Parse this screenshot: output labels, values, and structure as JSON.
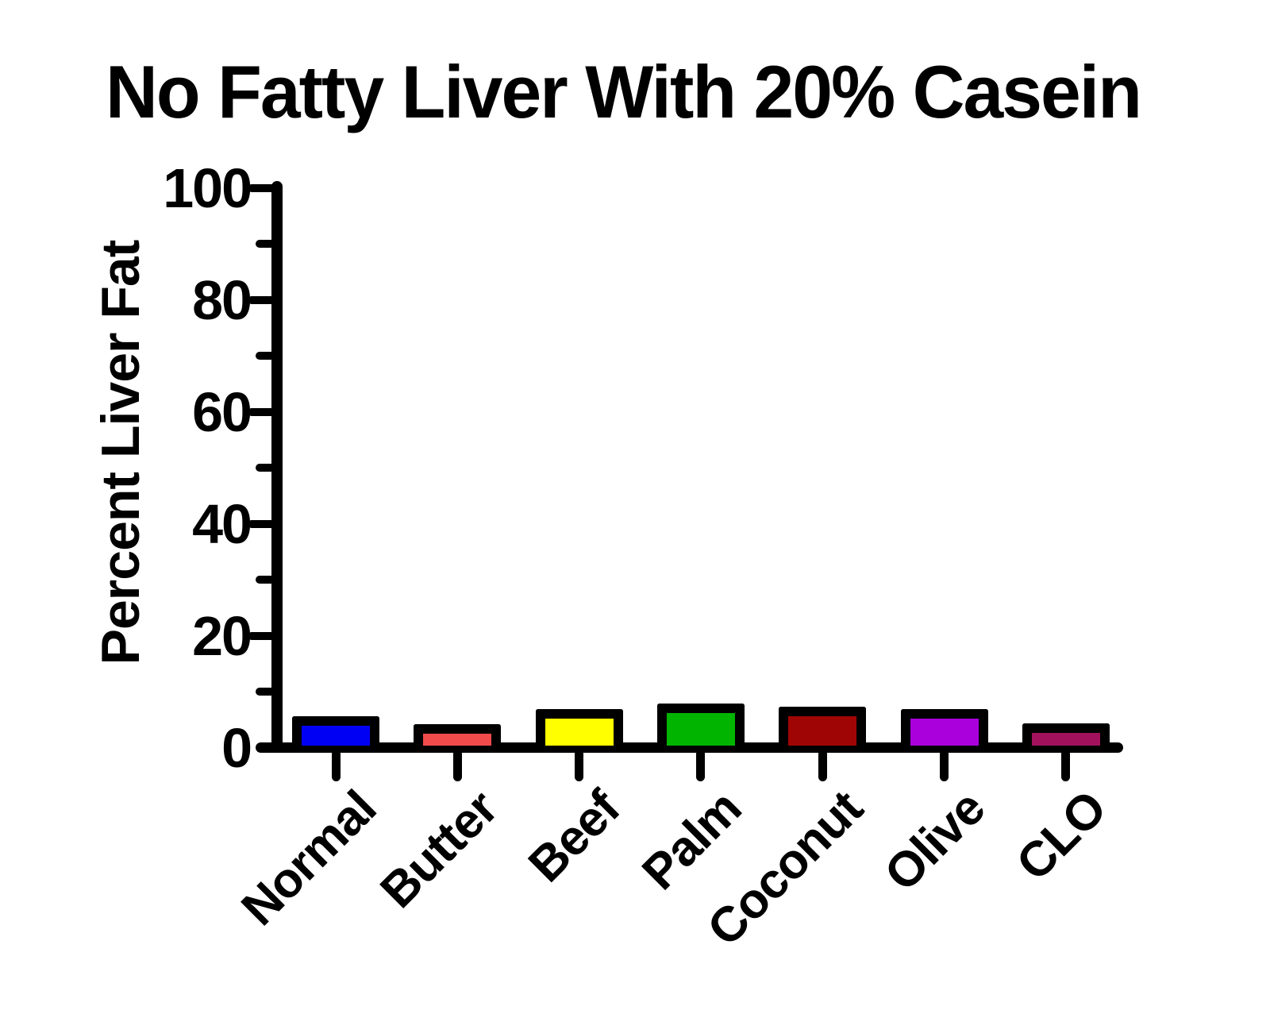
{
  "chart_data": {
    "type": "bar",
    "title": "No Fatty Liver With 20% Casein",
    "xlabel": "",
    "ylabel": "Percent Liver Fat",
    "categories": [
      "Normal",
      "Butter",
      "Beef",
      "Palm",
      "Coconut",
      "Olive",
      "CLO"
    ],
    "values": [
      4.7,
      3.3,
      6.0,
      6.9,
      6.4,
      6.0,
      3.4
    ],
    "bar_colors": [
      "#0000F5",
      "#F14B4B",
      "#FFFF00",
      "#00B400",
      "#A00505",
      "#AA00DC",
      "#A2125C"
    ],
    "ylim": [
      0,
      100
    ],
    "y_major_ticks": [
      0,
      20,
      40,
      60,
      80,
      100
    ],
    "y_minor_ticks": [
      10,
      30,
      50,
      70,
      90
    ],
    "grid": false,
    "legend": false,
    "axis_color": "#000000",
    "background_color": "#FFFFFF",
    "bar_outline_color": "#000000"
  }
}
